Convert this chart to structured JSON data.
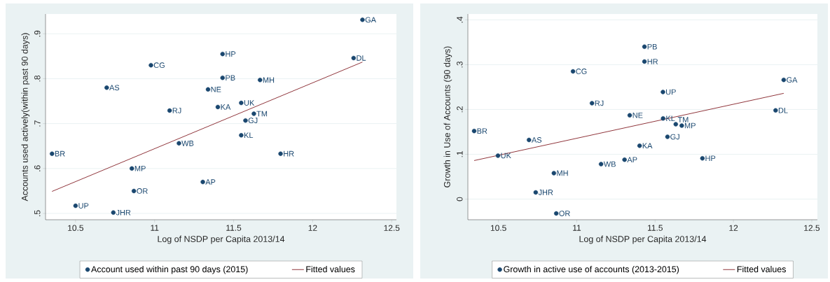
{
  "chart_data": [
    {
      "type": "scatter",
      "xlabel": "Log of NSDP per Capita 2013/14",
      "ylabel": "Accounts used actively(within past 90 days)",
      "xlim": [
        10.31,
        12.53
      ],
      "ylim": [
        0.486,
        0.944
      ],
      "xticks": [
        10.5,
        11,
        11.5,
        12,
        12.5
      ],
      "yticks": [
        {
          "value": 0.5,
          "label": ".5"
        },
        {
          "value": 0.6,
          "label": ".6"
        },
        {
          "value": 0.7,
          "label": ".7"
        },
        {
          "value": 0.8,
          "label": ".8"
        },
        {
          "value": 0.9,
          "label": ".9"
        }
      ],
      "grid": "y",
      "legend": "bottom",
      "series": [
        {
          "name": "Account used within past 90 days (2015)",
          "type": "scatter",
          "marker": "circle",
          "color": "#1a476f",
          "x": [
            12.315,
            12.259,
            11.43,
            10.977,
            11.43,
            11.667,
            10.697,
            11.338,
            11.548,
            11.4,
            11.095,
            11.628,
            11.575,
            11.548,
            11.154,
            10.351,
            11.797,
            10.856,
            11.305,
            10.869,
            10.5,
            10.739
          ],
          "values": [
            0.931,
            0.846,
            0.855,
            0.83,
            0.802,
            0.797,
            0.78,
            0.776,
            0.746,
            0.737,
            0.729,
            0.722,
            0.707,
            0.674,
            0.656,
            0.633,
            0.633,
            0.6,
            0.57,
            0.55,
            0.517,
            0.502
          ]
        },
        {
          "name": "Fitted values",
          "type": "line",
          "color": "#90353b",
          "x": [
            10.351,
            12.315
          ],
          "values": [
            0.549,
            0.837
          ]
        }
      ],
      "annotations": [
        {
          "text": "GA",
          "x": 12.315,
          "y": 0.931
        },
        {
          "text": "DL",
          "x": 12.259,
          "y": 0.846
        },
        {
          "text": "HP",
          "x": 11.43,
          "y": 0.855
        },
        {
          "text": "CG",
          "x": 10.977,
          "y": 0.83
        },
        {
          "text": "PB",
          "x": 11.43,
          "y": 0.802
        },
        {
          "text": "MH",
          "x": 11.667,
          "y": 0.797
        },
        {
          "text": "AS",
          "x": 10.697,
          "y": 0.78
        },
        {
          "text": "NE",
          "x": 11.338,
          "y": 0.776
        },
        {
          "text": "UK",
          "x": 11.548,
          "y": 0.746
        },
        {
          "text": "KA",
          "x": 11.4,
          "y": 0.737
        },
        {
          "text": "RJ",
          "x": 11.095,
          "y": 0.729
        },
        {
          "text": "TM",
          "x": 11.628,
          "y": 0.722
        },
        {
          "text": "GJ",
          "x": 11.575,
          "y": 0.707
        },
        {
          "text": "KL",
          "x": 11.548,
          "y": 0.674
        },
        {
          "text": "WB",
          "x": 11.154,
          "y": 0.656
        },
        {
          "text": "BR",
          "x": 10.351,
          "y": 0.633
        },
        {
          "text": "HR",
          "x": 11.797,
          "y": 0.633
        },
        {
          "text": "MP",
          "x": 10.856,
          "y": 0.6
        },
        {
          "text": "AP",
          "x": 11.305,
          "y": 0.57
        },
        {
          "text": "OR",
          "x": 10.869,
          "y": 0.55
        },
        {
          "text": "UP",
          "x": 10.5,
          "y": 0.517
        },
        {
          "text": "JHR",
          "x": 10.739,
          "y": 0.502
        }
      ]
    },
    {
      "type": "scatter",
      "xlabel": "Log of NSDP per Capita 2013/14",
      "ylabel": "Growth in Use of Accounts (90 days)",
      "xlim": [
        10.305,
        12.536
      ],
      "ylim": [
        -0.046,
        0.413
      ],
      "xticks": [
        10.5,
        11,
        11.5,
        12,
        12.5
      ],
      "yticks": [
        0,
        {
          "value": 0.1,
          "label": ".1"
        },
        {
          "value": 0.2,
          "label": ".2"
        },
        {
          "value": 0.3,
          "label": ".3"
        },
        {
          "value": 0.4,
          "label": ".4"
        }
      ],
      "grid": "y",
      "legend": "bottom",
      "series": [
        {
          "name": "Growth in active use of accounts (2013-2015)",
          "type": "scatter",
          "marker": "circle",
          "color": "#1a476f",
          "x": [
            11.432,
            11.432,
            10.976,
            12.321,
            11.55,
            11.097,
            12.269,
            11.338,
            11.551,
            11.632,
            11.67,
            10.345,
            11.579,
            10.695,
            11.401,
            10.497,
            11.802,
            11.305,
            11.155,
            10.854,
            10.738,
            10.869
          ],
          "values": [
            0.34,
            0.307,
            0.285,
            0.266,
            0.239,
            0.214,
            0.198,
            0.187,
            0.18,
            0.167,
            0.164,
            0.152,
            0.139,
            0.132,
            0.119,
            0.097,
            0.091,
            0.088,
            0.078,
            0.058,
            0.015,
            -0.032
          ]
        },
        {
          "name": "Fitted values",
          "type": "line",
          "color": "#90353b",
          "x": [
            10.345,
            12.321
          ],
          "values": [
            0.086,
            0.236
          ]
        }
      ],
      "annotations": [
        {
          "text": "PB",
          "x": 11.432,
          "y": 0.34
        },
        {
          "text": "HR",
          "x": 11.432,
          "y": 0.307
        },
        {
          "text": "CG",
          "x": 10.976,
          "y": 0.285
        },
        {
          "text": "GA",
          "x": 12.321,
          "y": 0.266
        },
        {
          "text": "UP",
          "x": 11.55,
          "y": 0.239
        },
        {
          "text": "RJ",
          "x": 11.097,
          "y": 0.214
        },
        {
          "text": "DL",
          "x": 12.269,
          "y": 0.198
        },
        {
          "text": "NE",
          "x": 11.338,
          "y": 0.187
        },
        {
          "text": "KL",
          "x": 11.551,
          "y": 0.18
        },
        {
          "text": "TM",
          "x": 11.632,
          "y": 0.167
        },
        {
          "text": "MP",
          "x": 11.67,
          "y": 0.164
        },
        {
          "text": "BR",
          "x": 10.345,
          "y": 0.152
        },
        {
          "text": "GJ",
          "x": 11.579,
          "y": 0.139
        },
        {
          "text": "AS",
          "x": 10.695,
          "y": 0.132
        },
        {
          "text": "KA",
          "x": 11.401,
          "y": 0.119
        },
        {
          "text": "UK",
          "x": 10.497,
          "y": 0.097
        },
        {
          "text": "HP",
          "x": 11.802,
          "y": 0.091
        },
        {
          "text": "AP",
          "x": 11.305,
          "y": 0.088
        },
        {
          "text": "WB",
          "x": 11.155,
          "y": 0.078
        },
        {
          "text": "MH",
          "x": 10.854,
          "y": 0.058
        },
        {
          "text": "JHR",
          "x": 10.738,
          "y": 0.015
        },
        {
          "text": "OR",
          "x": 10.869,
          "y": -0.032
        }
      ]
    }
  ]
}
